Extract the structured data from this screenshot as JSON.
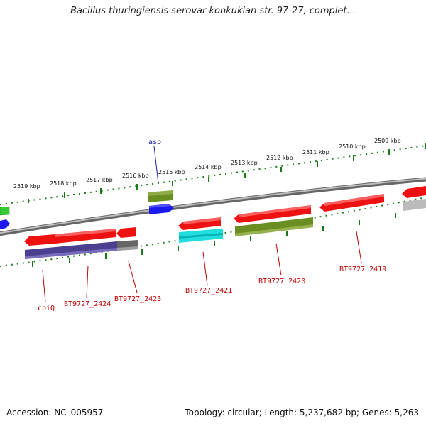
{
  "title": "Bacillus thuringiensis serovar konkukian str. 97-27, complet...",
  "footer": {
    "accession": "Accession: NC_005957",
    "summary": "Topology: circular; Length: 5,237,682 bp; Genes: 5,263"
  },
  "scale": {
    "labels": [
      "2519 kbp",
      "2518 kbp",
      "2517 kbp",
      "2516 kbp",
      "2515 kbp",
      "2514 kbp",
      "2513 kbp",
      "2512 kbp",
      "2511 kbp",
      "2510 kbp",
      "2509 kbp"
    ]
  },
  "gene_labels": [
    {
      "text": "asp",
      "color": "#1a1aaa"
    },
    {
      "text": "cbiQ",
      "color": "#c00000"
    },
    {
      "text": "BT9727_2424",
      "color": "#c00000"
    },
    {
      "text": "BT9727_2423",
      "color": "#c00000"
    },
    {
      "text": "BT9727_2421",
      "color": "#c00000"
    },
    {
      "text": "BT9727_2420",
      "color": "#c00000"
    },
    {
      "text": "BT9727_2419",
      "color": "#c00000"
    }
  ],
  "colors": {
    "backbone": "#808080",
    "ticks": "#1a7a1a",
    "red": "#ee1111",
    "olive": "#6b8e23",
    "blue": "#1a1aee",
    "navy": "#4b3f8f",
    "cyan": "#22dddd",
    "gray": "#777777",
    "lightgray": "#bbbbbb",
    "green": "#33cc33"
  }
}
